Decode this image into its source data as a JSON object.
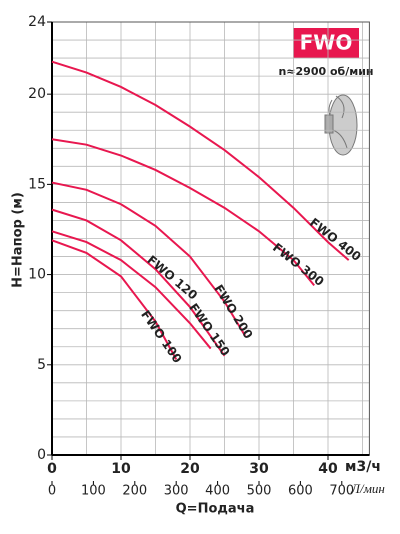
{
  "chart_data": {
    "type": "line",
    "title": "FWO",
    "subtitle": "n≈2900 об/мин",
    "ylabel": "H=Напор (м)",
    "xlabel": "Q=Подача",
    "xunit": "м3/ч",
    "x2unit": "Л/мин",
    "color": "#e8174f",
    "xlim": [
      0,
      46
    ],
    "xticks": [
      0,
      10,
      20,
      30,
      40
    ],
    "x_grid": [
      0,
      5,
      10,
      15,
      20,
      25,
      30,
      35,
      40,
      45
    ],
    "x2lim": [
      0,
      766.7
    ],
    "x2ticks": [
      0,
      100,
      200,
      300,
      400,
      500,
      600,
      700
    ],
    "ylim": [
      0,
      24
    ],
    "yticks": [
      0,
      5,
      10,
      15,
      20,
      24
    ],
    "y_grid": [
      0,
      1,
      2,
      3,
      4,
      5,
      6,
      7,
      8,
      9,
      10,
      11,
      12,
      13,
      14,
      15,
      16,
      17,
      18,
      19,
      20,
      21,
      22,
      23,
      24
    ],
    "series": [
      {
        "name": "FWO 400",
        "x": [
          0,
          5,
          10,
          15,
          20,
          25,
          30,
          35,
          40,
          43
        ],
        "values": [
          21.8,
          21.2,
          20.4,
          19.4,
          18.2,
          16.9,
          15.4,
          13.7,
          11.8,
          10.8
        ]
      },
      {
        "name": "FWO 300",
        "x": [
          0,
          5,
          10,
          15,
          20,
          25,
          30,
          35,
          38
        ],
        "values": [
          17.5,
          17.2,
          16.6,
          15.8,
          14.8,
          13.7,
          12.4,
          10.8,
          9.4
        ]
      },
      {
        "name": "FWO 200",
        "x": [
          0,
          5,
          10,
          15,
          20,
          25,
          28
        ],
        "values": [
          15.1,
          14.7,
          13.9,
          12.7,
          11.0,
          8.5,
          6.6
        ]
      },
      {
        "name": "FWO 150",
        "x": [
          0,
          5,
          10,
          15,
          20,
          25
        ],
        "values": [
          13.6,
          13.0,
          11.9,
          10.3,
          8.2,
          5.5
        ]
      },
      {
        "name": "FWO 120",
        "x": [
          0,
          5,
          10,
          15,
          20,
          23
        ],
        "values": [
          12.4,
          11.8,
          10.8,
          9.3,
          7.3,
          5.9
        ]
      },
      {
        "name": "FWO 100",
        "x": [
          0,
          5,
          10,
          15,
          18
        ],
        "values": [
          11.9,
          11.2,
          9.9,
          7.4,
          5.3
        ]
      }
    ]
  }
}
